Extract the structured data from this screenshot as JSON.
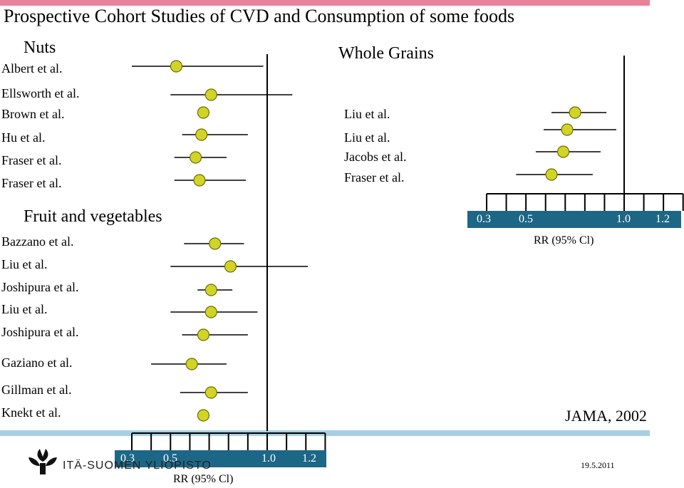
{
  "title": "Prospective Cohort Studies of CVD and Consumption of some foods",
  "colors": {
    "top_bar": "#e8829a",
    "bottom_bar": "#a6cfe3",
    "axis_band": "#1d6786",
    "marker_fill": "#d2d424",
    "marker_stroke": "#6b6b10"
  },
  "logo": {
    "icon": "university-leaf-icon",
    "text": "ITÄ-SUOMEN YLIOPISTO"
  },
  "footer": {
    "date": "19.5.2011",
    "citation": "JAMA, 2002"
  },
  "chart_data": [
    {
      "type": "forest",
      "title": "Nuts / Fruit and vegetables",
      "xlabel": "RR (95% Cl)",
      "x_ticks": [
        "0.3",
        "0.5",
        "1.0",
        "1.2"
      ],
      "xlim": [
        0.3,
        1.3
      ],
      "reference_line": 1.0,
      "groups": [
        {
          "name": "Nuts",
          "studies": [
            {
              "label": "Albert et al.",
              "rr": 0.53,
              "lo": 0.3,
              "hi": 0.98
            },
            {
              "label": "Ellsworth et al.",
              "rr": 0.71,
              "lo": 0.5,
              "hi": 1.13
            },
            {
              "label": "Brown et al.",
              "rr": 0.67,
              "lo": null,
              "hi": null
            },
            {
              "label": "Hu et al.",
              "rr": 0.66,
              "lo": 0.56,
              "hi": 0.9
            },
            {
              "label": "Fraser et al.",
              "rr": 0.63,
              "lo": 0.52,
              "hi": 0.79
            },
            {
              "label": "Fraser et al.",
              "rr": 0.65,
              "lo": 0.52,
              "hi": 0.89
            }
          ]
        },
        {
          "name": "Fruit and vegetables",
          "studies": [
            {
              "label": "Bazzano et al.",
              "rr": 0.73,
              "lo": 0.57,
              "hi": 0.88
            },
            {
              "label": "Liu et al.",
              "rr": 0.81,
              "lo": 0.5,
              "hi": 1.21
            },
            {
              "label": "Joshipura et al.",
              "rr": 0.71,
              "lo": 0.64,
              "hi": 0.82
            },
            {
              "label": "Liu et al.",
              "rr": 0.71,
              "lo": 0.5,
              "hi": 0.95
            },
            {
              "label": "Joshipura et al.",
              "rr": 0.67,
              "lo": 0.56,
              "hi": 0.9
            },
            {
              "label": "Gaziano et al.",
              "rr": 0.61,
              "lo": 0.4,
              "hi": 0.79
            },
            {
              "label": "Gillman et al.",
              "rr": 0.71,
              "lo": 0.55,
              "hi": 0.9
            },
            {
              "label": "Knekt et al.",
              "rr": 0.67,
              "lo": null,
              "hi": null
            }
          ]
        }
      ]
    },
    {
      "type": "forest",
      "title": "Whole Grains",
      "xlabel": "RR (95% Cl)",
      "x_ticks": [
        "0.3",
        "0.5",
        "1.0",
        "1.2"
      ],
      "xlim": [
        0.3,
        1.3
      ],
      "reference_line": 1.0,
      "groups": [
        {
          "name": "Whole Grains",
          "studies": [
            {
              "label": "Liu et al.",
              "rr": 0.75,
              "lo": 0.63,
              "hi": 0.91
            },
            {
              "label": "Liu et al.",
              "rr": 0.71,
              "lo": 0.59,
              "hi": 0.96
            },
            {
              "label": "Jacobs et al.",
              "rr": 0.69,
              "lo": 0.55,
              "hi": 0.88
            },
            {
              "label": "Fraser et al.",
              "rr": 0.63,
              "lo": 0.45,
              "hi": 0.84
            }
          ]
        }
      ]
    }
  ]
}
